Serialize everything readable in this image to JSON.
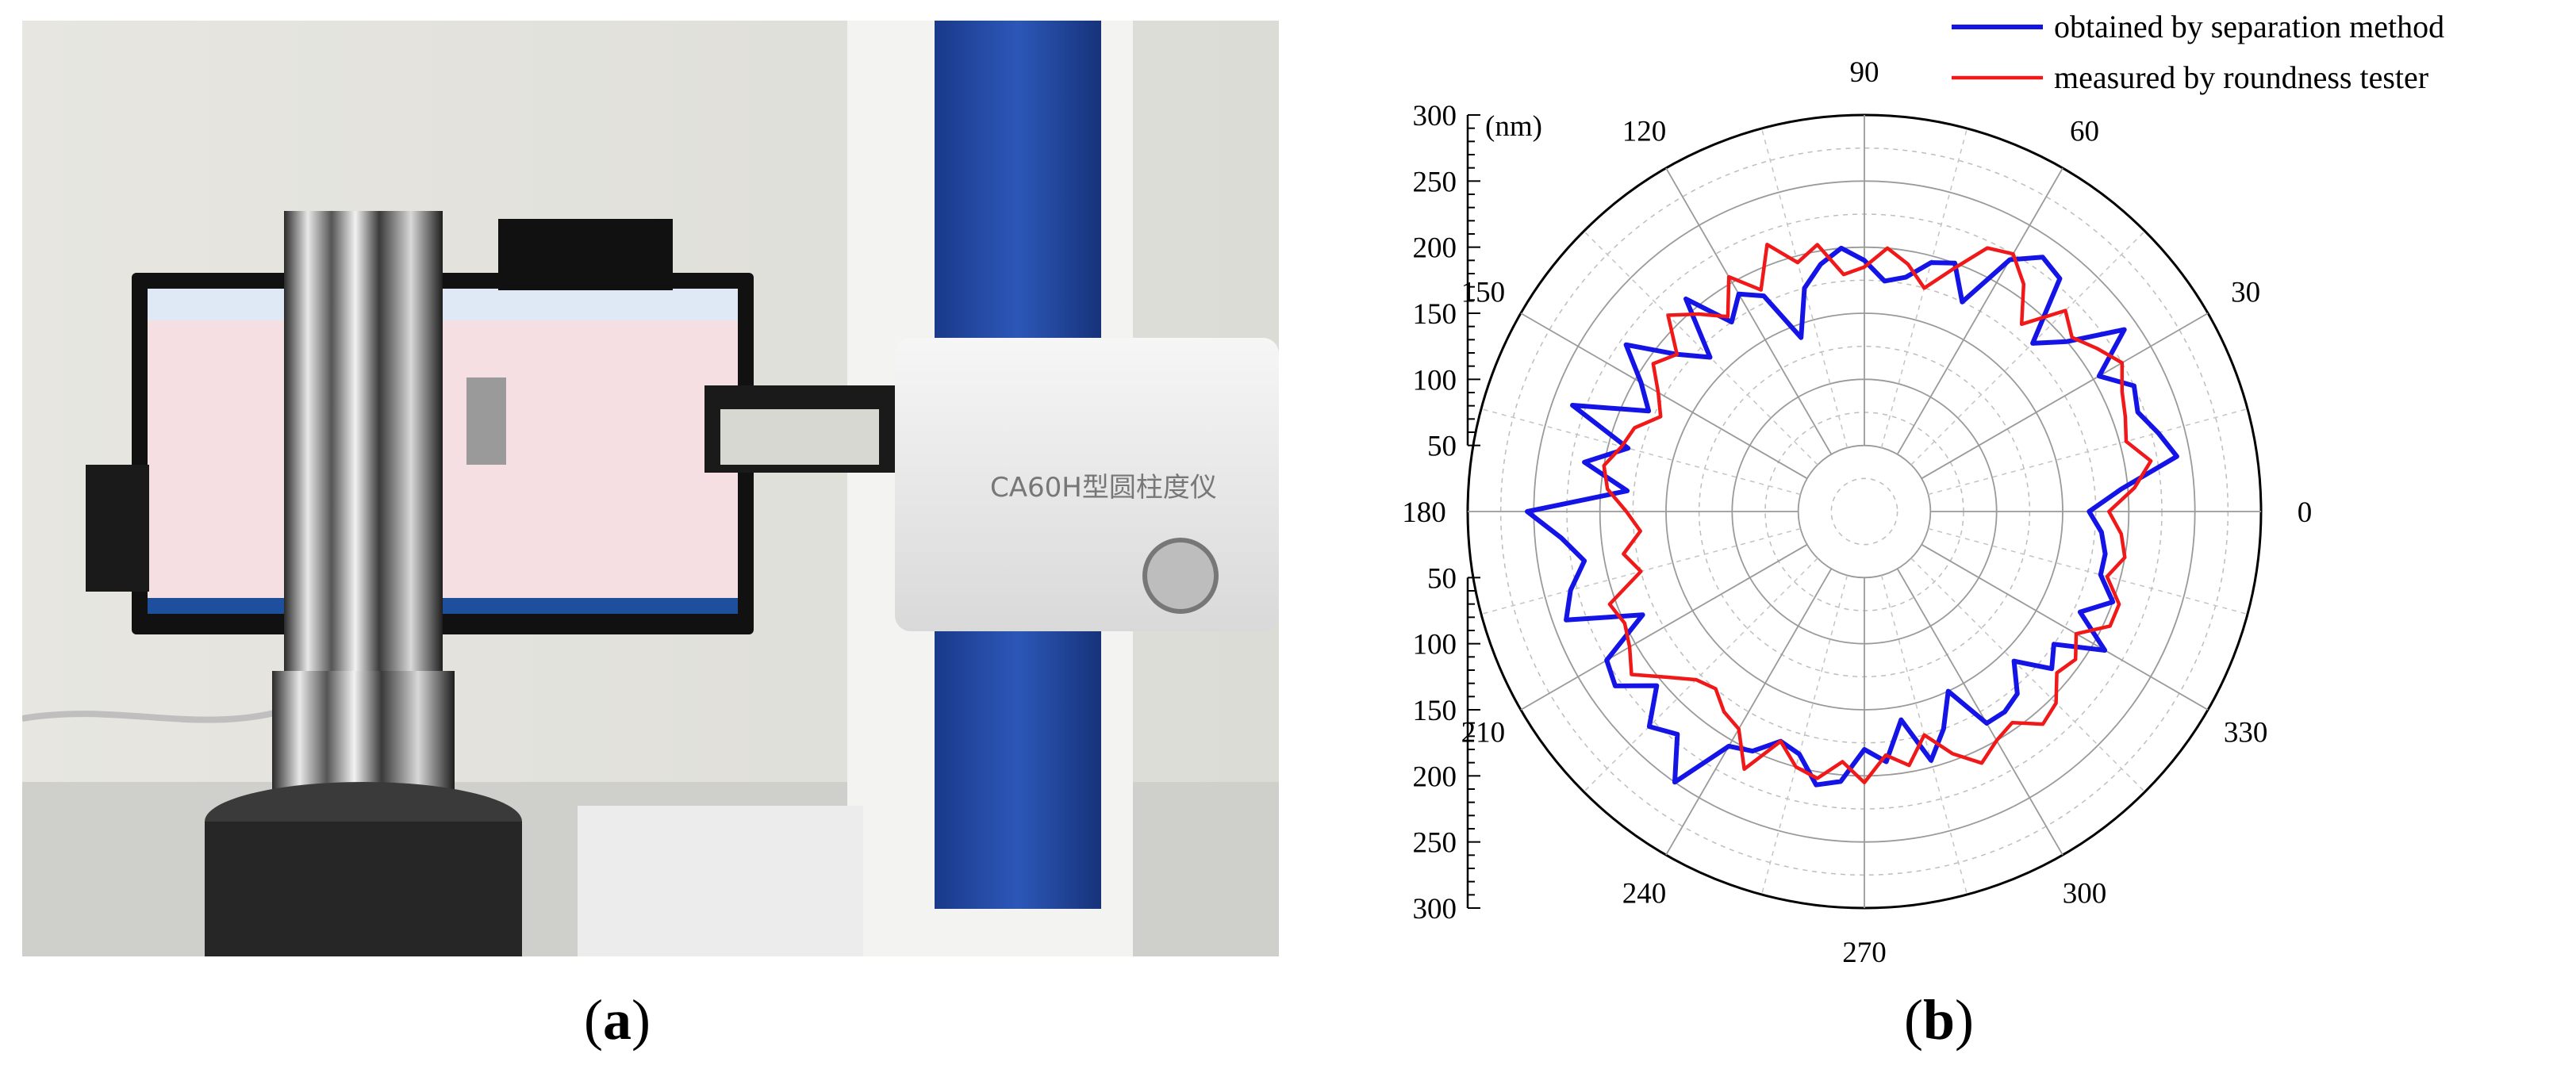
{
  "photo": {
    "device_label": "CA60H型圆柱度仪"
  },
  "captions": {
    "a": "a",
    "b": "b"
  },
  "colors": {
    "separation": "#1414e6",
    "tester": "#f01818",
    "grid": "#9a9a9a",
    "background": "#ffffff"
  },
  "chart_data": {
    "type": "polar-line",
    "unit_label": "(nm)",
    "radial_ticks": [
      50,
      100,
      150,
      200,
      250,
      300
    ],
    "rlim": [
      0,
      300
    ],
    "angle_ticks": [
      0,
      30,
      60,
      90,
      120,
      150,
      180,
      210,
      240,
      270,
      300,
      330
    ],
    "angle_tick_labels": [
      "0",
      "30",
      "60",
      "90",
      "120",
      "150",
      "180",
      "210",
      "240",
      "270",
      "300",
      "330"
    ],
    "axis_tick_labels_upper": [
      "300",
      "250",
      "200",
      "150",
      "100",
      "50"
    ],
    "axis_tick_labels_lower": [
      "50",
      "100",
      "150",
      "200",
      "250",
      "300"
    ],
    "grid": true,
    "legend_position": "top-right",
    "series": [
      {
        "name": "obtained by separation method",
        "color": "#1414e6",
        "theta": [
          0,
          5,
          10,
          15,
          20,
          25,
          30,
          35,
          40,
          45,
          50,
          55,
          60,
          65,
          70,
          75,
          80,
          85,
          90,
          95,
          100,
          105,
          110,
          115,
          120,
          125,
          130,
          135,
          140,
          145,
          150,
          155,
          160,
          165,
          170,
          175,
          180,
          185,
          190,
          195,
          200,
          205,
          210,
          215,
          220,
          225,
          230,
          235,
          240,
          245,
          250,
          255,
          260,
          265,
          270,
          275,
          280,
          285,
          290,
          295,
          300,
          305,
          310,
          315,
          320,
          325,
          330,
          335,
          340,
          345,
          350,
          355
        ],
        "r": [
          170,
          195,
          240,
          230,
          220,
          225,
          205,
          240,
          200,
          180,
          230,
          235,
          220,
          175,
          200,
          195,
          180,
          175,
          190,
          200,
          190,
          175,
          140,
          180,
          190,
          175,
          210,
          165,
          185,
          220,
          195,
          180,
          235,
          185,
          215,
          180,
          255,
          230,
          215,
          230,
          240,
          185,
          225,
          230,
          205,
          230,
          220,
          250,
          205,
          200,
          185,
          190,
          210,
          205,
          180,
          190,
          160,
          195,
          175,
          150,
          185,
          185,
          180,
          160,
          185,
          175,
          210,
          180,
          200,
          185,
          185,
          180
        ],
        "note": ""
      },
      {
        "name": "measured by roundness tester",
        "color": "#f01818",
        "theta": [
          0,
          5,
          10,
          15,
          20,
          25,
          30,
          35,
          40,
          45,
          50,
          55,
          60,
          65,
          70,
          75,
          80,
          85,
          90,
          95,
          100,
          105,
          110,
          115,
          120,
          125,
          130,
          135,
          140,
          145,
          150,
          155,
          160,
          165,
          170,
          175,
          180,
          185,
          190,
          195,
          200,
          205,
          210,
          215,
          220,
          225,
          230,
          235,
          240,
          245,
          250,
          255,
          260,
          265,
          270,
          275,
          280,
          285,
          290,
          295,
          300,
          305,
          310,
          315,
          320,
          325,
          330,
          335,
          340,
          345,
          350,
          355
        ],
        "r": [
          185,
          205,
          220,
          205,
          210,
          215,
          225,
          215,
          205,
          215,
          185,
          210,
          225,
          220,
          195,
          175,
          190,
          200,
          185,
          180,
          205,
          195,
          215,
          185,
          205,
          180,
          195,
          210,
          185,
          195,
          180,
          170,
          185,
          190,
          200,
          195,
          180,
          170,
          185,
          175,
          205,
          200,
          205,
          215,
          195,
          180,
          175,
          185,
          190,
          215,
          185,
          200,
          205,
          190,
          205,
          185,
          195,
          175,
          195,
          210,
          200,
          195,
          210,
          205,
          190,
          195,
          185,
          205,
          205,
          190,
          200,
          195
        ]
      }
    ]
  }
}
